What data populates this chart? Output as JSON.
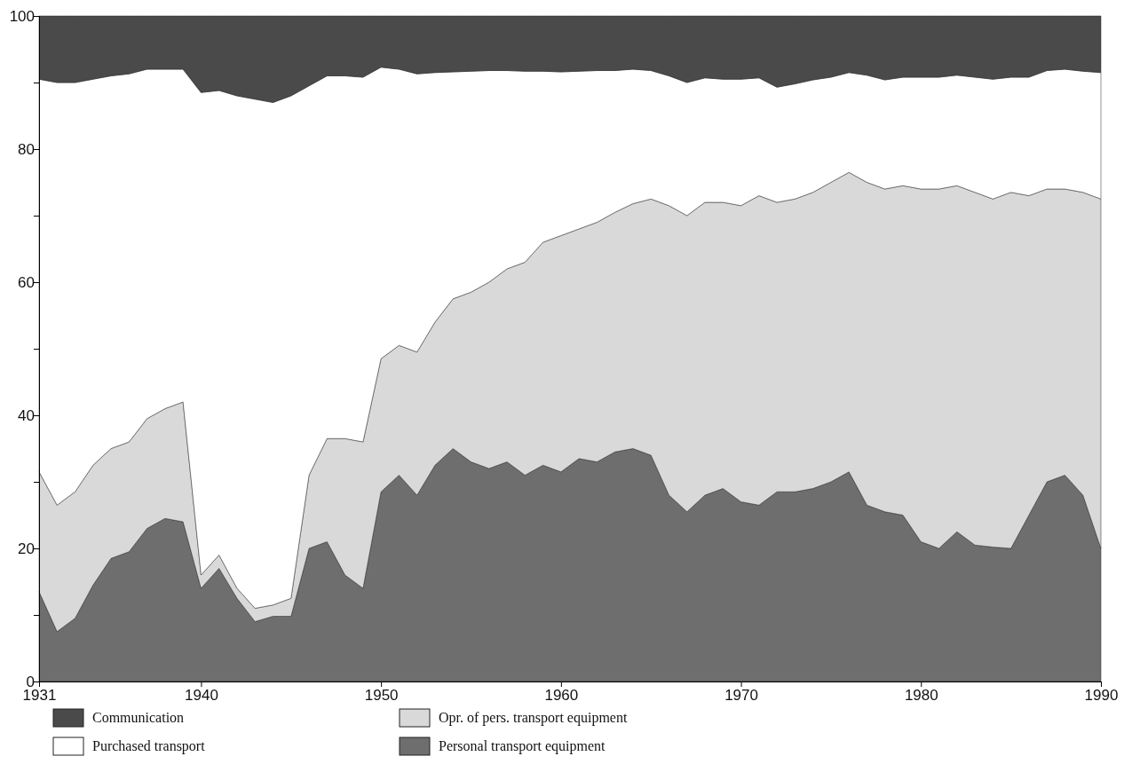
{
  "chart_data": {
    "type": "area",
    "stacked": true,
    "x": [
      1931,
      1932,
      1933,
      1934,
      1935,
      1936,
      1937,
      1938,
      1939,
      1940,
      1941,
      1942,
      1943,
      1944,
      1945,
      1946,
      1947,
      1948,
      1949,
      1950,
      1951,
      1952,
      1953,
      1954,
      1955,
      1956,
      1957,
      1958,
      1959,
      1960,
      1961,
      1962,
      1963,
      1964,
      1965,
      1966,
      1967,
      1968,
      1969,
      1970,
      1971,
      1972,
      1973,
      1974,
      1975,
      1976,
      1977,
      1978,
      1979,
      1980,
      1981,
      1982,
      1983,
      1984,
      1985,
      1986,
      1987,
      1988,
      1989,
      1990
    ],
    "series": [
      {
        "name": "Personal transport equipment",
        "color": "#6e6e6e",
        "values": [
          13.5,
          7.5,
          9.5,
          14.5,
          18.5,
          19.5,
          23,
          24.5,
          24,
          14,
          17,
          12.5,
          9,
          9.8,
          9.8,
          20,
          21,
          16,
          14,
          28.5,
          31,
          28,
          32.5,
          35,
          33,
          32,
          33,
          31,
          32.5,
          31.5,
          33.5,
          33,
          34.5,
          35,
          34,
          28,
          25.5,
          28,
          29,
          27,
          26.5,
          28.5,
          28.5,
          29,
          30,
          31.5,
          26.5,
          25.5,
          25,
          21,
          20,
          22.5,
          20.5,
          20.2,
          20,
          25,
          30,
          31,
          28,
          20
        ]
      },
      {
        "name": "Opr. of pers. transport equipment",
        "color": "#d9d9d9",
        "values": [
          18,
          19,
          19,
          18,
          16.5,
          16.5,
          16.5,
          16.5,
          18,
          2,
          2,
          1.5,
          2,
          1.7,
          2.7,
          11,
          15.5,
          20.5,
          22,
          20,
          19.5,
          21.5,
          21.5,
          22.5,
          25.5,
          28,
          29,
          32,
          33.5,
          35.5,
          34.5,
          36,
          36,
          36.8,
          38.5,
          43.5,
          44.5,
          44,
          43,
          44.5,
          46.5,
          43.5,
          44,
          44.5,
          45,
          45,
          48.5,
          48.5,
          49.5,
          53,
          54,
          52,
          53,
          52.3,
          53.5,
          48,
          44,
          43,
          45.5,
          52.5
        ]
      },
      {
        "name": "Purchased transport",
        "color": "#ffffff",
        "values": [
          59,
          63.5,
          61.5,
          58,
          56,
          55.3,
          52.5,
          51,
          50,
          72.5,
          69.8,
          74,
          76.5,
          75.5,
          75.5,
          58.5,
          54.5,
          54.5,
          54.8,
          43.8,
          41.5,
          41.8,
          37.5,
          34.1,
          33.2,
          31.8,
          29.8,
          28.7,
          25.7,
          24.6,
          23.7,
          22.8,
          21.3,
          20.2,
          19.3,
          19.5,
          20,
          18.7,
          18.5,
          19,
          17.7,
          17.3,
          17.3,
          16.9,
          15.8,
          15,
          16.1,
          16.4,
          16.3,
          16.8,
          16.8,
          16.6,
          17.3,
          18,
          17.3,
          17.8,
          17.8,
          18,
          18.2,
          19
        ]
      },
      {
        "name": "Communication",
        "color": "#4a4a4a",
        "values": [
          9.5,
          10,
          10,
          9.5,
          9,
          8.7,
          8,
          8,
          8,
          11.5,
          11.2,
          12,
          12.5,
          13,
          12,
          10.5,
          9,
          9,
          9.2,
          7.7,
          8,
          8.7,
          8.5,
          8.4,
          8.3,
          8.2,
          8.2,
          8.3,
          8.3,
          8.4,
          8.3,
          8.2,
          8.2,
          8,
          8.2,
          9,
          10,
          9.3,
          9.5,
          9.5,
          9.3,
          10.7,
          10.2,
          9.6,
          9.2,
          8.5,
          8.9,
          9.6,
          9.2,
          9.2,
          9.2,
          8.9,
          9.2,
          9.5,
          9.2,
          9.2,
          8.2,
          8,
          8.3,
          8.5
        ]
      }
    ],
    "xlim": [
      1931,
      1990
    ],
    "xticks": [
      1931,
      1940,
      1950,
      1960,
      1970,
      1980,
      1990
    ],
    "ylim": [
      0,
      100
    ],
    "yticks": [
      0,
      {
        "value": 10,
        "label": null
      },
      20,
      {
        "value": 30,
        "label": null
      },
      40,
      {
        "value": 50,
        "label": null
      },
      60,
      {
        "value": 70,
        "label": null
      },
      80,
      {
        "value": 90,
        "label": null
      },
      100
    ],
    "legend": "bottom"
  }
}
